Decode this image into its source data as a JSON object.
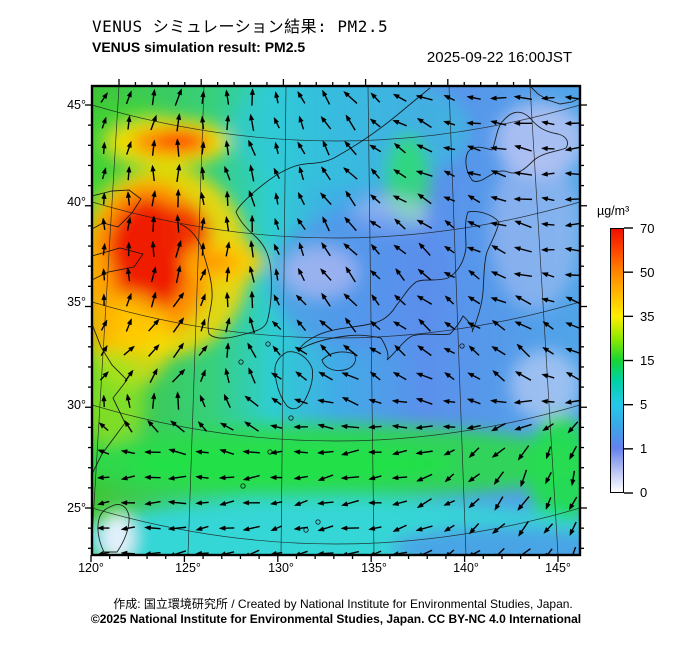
{
  "header": {
    "title_jp": "VENUS シミュレーション結果: PM2.5",
    "title_en": "VENUS simulation result: PM2.5",
    "timestamp": "2025-09-22 16:00JST"
  },
  "axes": {
    "lat_labels": [
      "45°",
      "40°",
      "35°",
      "30°",
      "25°"
    ],
    "lon_labels": [
      "120°",
      "125°",
      "130°",
      "135°",
      "140°",
      "145°"
    ]
  },
  "colorbar": {
    "unit": "µg/m³",
    "tick_labels": [
      "70",
      "50",
      "35",
      "15",
      "5",
      "1",
      "0"
    ],
    "stops": [
      [
        0.0,
        "#ffffff"
      ],
      [
        0.08,
        "#b9c2f4"
      ],
      [
        0.167,
        "#6282ec"
      ],
      [
        0.25,
        "#3aa6e6"
      ],
      [
        0.333,
        "#25c8e8"
      ],
      [
        0.42,
        "#00d2a8"
      ],
      [
        0.5,
        "#15d535"
      ],
      [
        0.58,
        "#8ae800"
      ],
      [
        0.667,
        "#ffee00"
      ],
      [
        0.75,
        "#ffbb00"
      ],
      [
        0.833,
        "#ff8800"
      ],
      [
        0.92,
        "#ff4400"
      ],
      [
        1.0,
        "#ee0f00"
      ]
    ]
  },
  "footer": {
    "line1": "作成: 国立環境研究所 / Created by National Institute for Environmental Studies, Japan.",
    "line2": "©2025 National Institute for Environmental Studies, Japan. CC BY-NC 4.0 International"
  },
  "viz": {
    "base_gradient": [
      [
        0,
        "#3fc636"
      ],
      [
        0.25,
        "#37d07e"
      ],
      [
        0.37,
        "#2fcdd2"
      ],
      [
        0.5,
        "#41ace7"
      ],
      [
        0.68,
        "#5b90ec"
      ],
      [
        1,
        "#4fa5e8"
      ]
    ],
    "field_blobs": [
      [
        130,
        170,
        60,
        70,
        "#44d830",
        0.6
      ],
      [
        350,
        130,
        120,
        60,
        "#2fc9d9",
        0.55
      ],
      [
        408,
        180,
        22,
        46,
        "#2ee06a",
        0.8
      ],
      [
        540,
        140,
        45,
        38,
        "#bcc6f4",
        0.8
      ],
      [
        535,
        230,
        45,
        80,
        "#b8c3f4",
        0.5
      ],
      [
        390,
        215,
        40,
        18,
        "#c3ccf5",
        0.6
      ],
      [
        360,
        280,
        90,
        70,
        "#5b8ded",
        0.6
      ],
      [
        320,
        272,
        38,
        26,
        "#aab6f3",
        0.8
      ],
      [
        545,
        385,
        35,
        35,
        "#ccd4f6",
        0.6
      ],
      [
        168,
        142,
        62,
        24,
        "#ffe000",
        0.9
      ],
      [
        172,
        142,
        40,
        13,
        "#ff7a00",
        0.95
      ],
      [
        180,
        140,
        22,
        8,
        "#ff2a00",
        0.9
      ],
      [
        165,
        262,
        85,
        95,
        "#ffd800",
        0.85
      ],
      [
        150,
        260,
        62,
        78,
        "#ff8c00",
        0.9
      ],
      [
        148,
        256,
        40,
        58,
        "#ee1500",
        0.95
      ],
      [
        185,
        235,
        25,
        30,
        "#ee2500",
        0.8
      ],
      [
        225,
        262,
        42,
        20,
        "#ffcc00",
        0.85
      ],
      [
        213,
        262,
        24,
        10,
        "#ff8800",
        0.8
      ],
      [
        122,
        332,
        24,
        30,
        "#ff9900",
        0.85
      ],
      [
        130,
        340,
        42,
        48,
        "#ffdd00",
        0.7
      ],
      [
        100,
        300,
        20,
        50,
        "#ffaa00",
        0.7
      ],
      [
        115,
        400,
        30,
        50,
        "#9ae520",
        0.7
      ],
      [
        330,
        462,
        255,
        38,
        "#2bd94a",
        0.9
      ],
      [
        290,
        464,
        165,
        20,
        "#1fe148",
        0.95
      ],
      [
        560,
        472,
        32,
        58,
        "#25dd50",
        0.95
      ],
      [
        336,
        540,
        265,
        42,
        "#35d6d6",
        1
      ],
      [
        500,
        548,
        110,
        22,
        "#4f97ea",
        0.8
      ],
      [
        117,
        537,
        17,
        26,
        "#eef2ff",
        0.95
      ]
    ],
    "coastlines": [
      "M92,196 L112,191 129,190 141,199 132,213 118,227 103,223 92,229",
      "M92,256 L120,248 143,254 134,267 108,272 92,280",
      "M92,324 L101,347 112,365 127,380 113,398 125,423 102,454 92,474",
      "M180,224 C190,228 199,238 203,252 C207,266 213,282 212,298 C211,312 206,322 209,334 C217,341 231,338 245,334 C257,331 264,329 267,322 C271,308 272,290 271,272 C270,256 265,246 257,238 C248,230 240,222 236,212 C240,204 248,198 254,192",
      "M254,192 C266,182 276,174 290,168 C305,161 318,166 334,158 C352,148 374,134 396,116 C408,106 420,96 430,88",
      "M287,352 C280,356 274,362 275,372 C276,384 279,396 287,406 C294,412 301,408 306,398 C311,388 314,378 312,368 C308,358 298,350 287,352 Z",
      "M322,360 C330,352 342,350 354,354 C358,360 354,368 344,370 C334,372 324,368 322,360 Z",
      "M299,350 C312,342 330,338 346,336 C360,334 372,336 381,338 C386,346 390,356 387,360 C396,352 404,340 412,336 C426,332 440,336 450,334 C458,326 462,318 463,316 C470,322 474,330 472,332 C478,318 482,304 483,292 C484,276 484,262 487,252 C492,240 497,232 499,222 C492,214 478,210 468,212 C464,222 466,236 466,248 C464,262 458,272 448,278 C436,282 424,278 416,282 C408,288 404,296 396,306 C390,316 382,322 370,324 C352,328 332,328 316,336 C308,340 302,344 299,350 Z",
      "M472,180 C466,172 464,160 468,152 C474,144 484,148 492,150 C496,142 496,130 502,122 C510,112 520,108 530,118 C538,128 546,132 558,134 C566,136 570,142 566,148 C556,152 544,152 534,160 C526,168 518,176 508,172 C498,168 490,176 482,180 C478,182 474,182 472,180 Z",
      "M112,506 C120,502 127,506 129,516 C130,528 124,542 117,552 L104,552 C98,540 96,526 100,516 C103,510 107,508 112,506 Z",
      "M530,86 L538,94 548,100 560,104 572,102 580,98"
    ],
    "islands": [
      [
        241,
        362
      ],
      [
        268,
        344
      ],
      [
        291,
        418
      ],
      [
        270,
        452
      ],
      [
        243,
        486
      ],
      [
        306,
        530
      ],
      [
        318,
        522
      ],
      [
        462,
        346
      ]
    ],
    "grid": {
      "parallel_edge_y": [
        105,
        202,
        302,
        405,
        508
      ],
      "parallel_sag": 36,
      "meridian_bottom_x": [
        91,
        188,
        281,
        374,
        466,
        558
      ],
      "meridian_top_x": [
        119,
        204,
        286,
        368,
        449,
        530
      ]
    },
    "wind_anchors": [
      [
        65,
        80,
        100,
        150,
        170,
        185
      ],
      [
        85,
        90,
        115,
        140,
        165,
        185
      ],
      [
        95,
        70,
        110,
        135,
        150,
        175
      ],
      [
        45,
        40,
        150,
        145,
        140,
        150
      ],
      [
        180,
        182,
        186,
        190,
        230,
        262
      ],
      [
        185,
        190,
        195,
        195,
        215,
        245
      ]
    ]
  }
}
